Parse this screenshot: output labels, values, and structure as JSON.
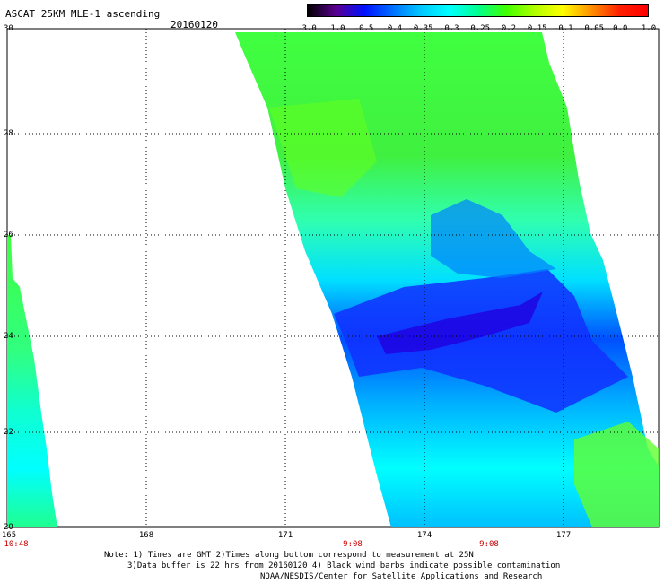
{
  "header": {
    "title": "ASCAT 25KM MLE-1 ascending",
    "date": "20160120"
  },
  "colorbar": {
    "labels": [
      "-3.0",
      "-1.0",
      "-0.5",
      "-0.4",
      "-0.35",
      "-0.3",
      "-0.25",
      "-0.2",
      "-0.15",
      "-0.1",
      "-0.05",
      "0.0",
      "1.0"
    ],
    "colors": [
      "#000000",
      "#5a0090",
      "#0010ff",
      "#0070ff",
      "#00c8ff",
      "#00ffff",
      "#00ff90",
      "#40ff00",
      "#b0ff00",
      "#ffff00",
      "#ff9000",
      "#ff2000",
      "#ff0000"
    ]
  },
  "axes": {
    "lat_ticks": [
      "30",
      "28",
      "26",
      "24",
      "22",
      "20"
    ],
    "lon_ticks": [
      "165",
      "168",
      "171",
      "174",
      "177"
    ],
    "time_labels": [
      "10:48",
      "9:08",
      "9:08"
    ]
  },
  "footer": {
    "note1": "Note: 1) Times are GMT 2)Times along bottom correspond to measurement at 25N",
    "note2": "3)Data buffer is 22 hrs from 20160120 4) Black wind barbs indicate possible contamination",
    "note3": "NOAA/NESDIS/Center for Satellite Applications and Research"
  }
}
